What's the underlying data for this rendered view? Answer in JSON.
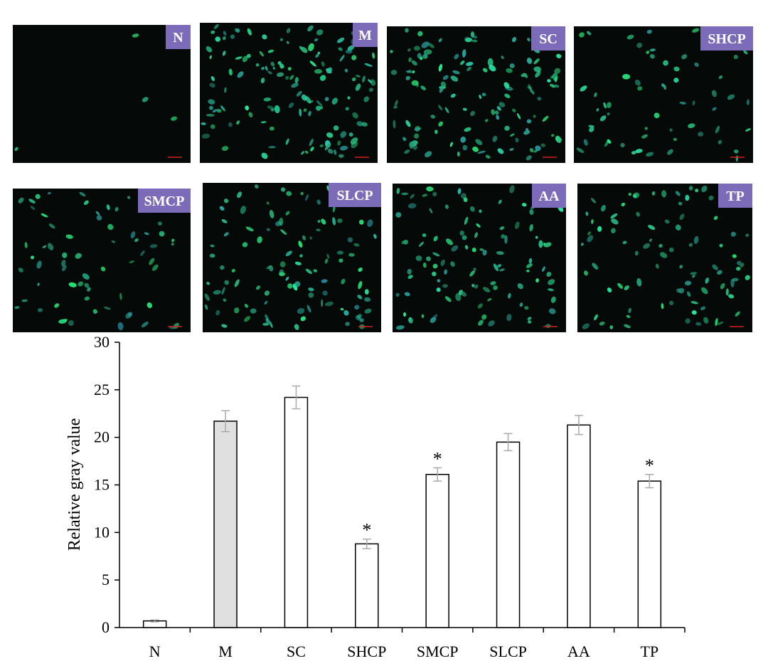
{
  "panels": [
    {
      "label": "N"
    },
    {
      "label": "M"
    },
    {
      "label": "SC"
    },
    {
      "label": "SHCP"
    },
    {
      "label": "SMCP"
    },
    {
      "label": "SLCP"
    },
    {
      "label": "AA"
    },
    {
      "label": "TP"
    }
  ],
  "chart_data": {
    "type": "bar",
    "y_label": "Relative gray value",
    "categories": [
      "N",
      "M",
      "SC",
      "SHCP",
      "SMCP",
      "SLCP",
      "AA",
      "TP"
    ],
    "values": [
      0.7,
      21.7,
      24.2,
      8.8,
      16.1,
      19.5,
      21.3,
      15.4
    ],
    "errors": [
      0.1,
      1.1,
      1.2,
      0.5,
      0.7,
      0.9,
      1.0,
      0.7
    ],
    "colors": [
      "#ffffff",
      "#e0e0e0",
      "#ffffff",
      "#ffffff",
      "#ffffff",
      "#ffffff",
      "#ffffff",
      "#ffffff"
    ],
    "error_color": "#aaaaaa",
    "annotations": [
      {
        "x": "SHCP",
        "text": "*"
      },
      {
        "x": "SMCP",
        "text": "*"
      },
      {
        "x": "TP",
        "text": "*"
      }
    ],
    "ylim": [
      0,
      30
    ],
    "yticks": [
      0,
      5,
      10,
      15,
      20,
      25,
      30
    ]
  }
}
